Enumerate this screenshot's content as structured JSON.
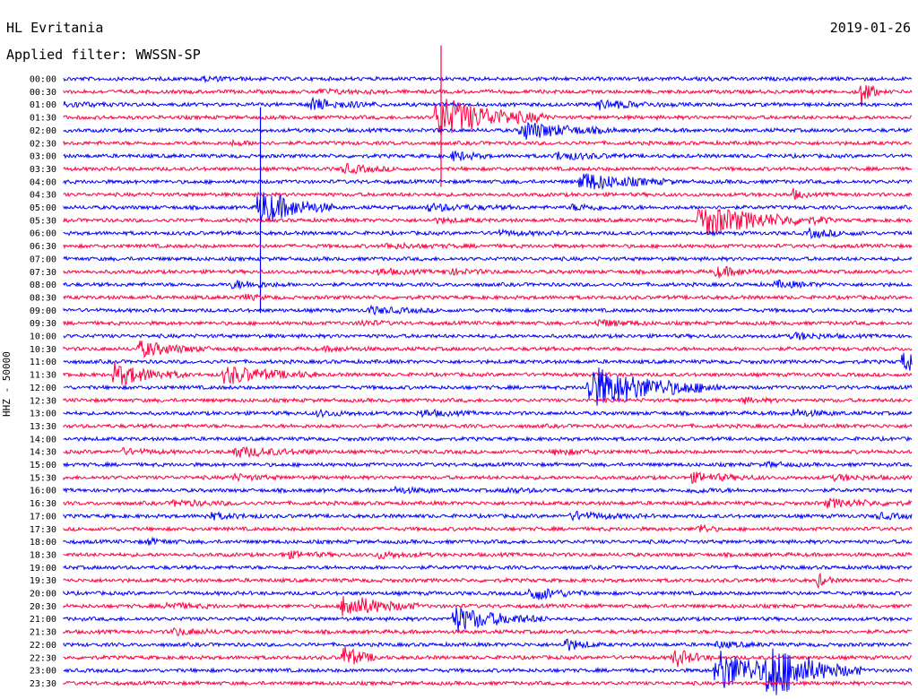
{
  "header": {
    "station": "HL Evritania",
    "date": "2019-01-26",
    "filter": "Applied filter: WWSSN-SP"
  },
  "chart_data": {
    "type": "line",
    "title": "HL Evritania",
    "subtitle": "Applied filter: WWSSN-SP",
    "ylabel": "HHZ - 50000",
    "xlabel": "",
    "colors": [
      "#0000ff",
      "#ff0040"
    ],
    "grid": false,
    "rows": [
      "00:00",
      "00:30",
      "01:00",
      "01:30",
      "02:00",
      "02:30",
      "03:00",
      "03:30",
      "04:00",
      "04:30",
      "05:00",
      "05:30",
      "06:00",
      "06:30",
      "07:00",
      "07:30",
      "08:00",
      "08:30",
      "09:00",
      "09:30",
      "10:00",
      "10:30",
      "11:00",
      "11:30",
      "12:00",
      "12:30",
      "13:00",
      "13:30",
      "14:00",
      "14:30",
      "15:00",
      "15:30",
      "16:00",
      "16:30",
      "17:00",
      "17:30",
      "18:00",
      "18:30",
      "19:00",
      "19:30",
      "20:00",
      "20:30",
      "21:00",
      "21:30",
      "22:00",
      "22:30",
      "23:00",
      "23:30"
    ],
    "events": [
      {
        "row": 0,
        "x": 0.16,
        "amp": 0.3,
        "dur": 0.03
      },
      {
        "row": 0,
        "x": 0.75,
        "amp": 0.2,
        "dur": 0.02
      },
      {
        "row": 1,
        "x": 0.3,
        "amp": 0.3,
        "dur": 0.04
      },
      {
        "row": 1,
        "x": 0.94,
        "amp": 2.5,
        "dur": 0.01
      },
      {
        "row": 2,
        "x": 0.0,
        "amp": 0.4,
        "dur": 0.03
      },
      {
        "row": 2,
        "x": 0.29,
        "amp": 0.9,
        "dur": 0.04
      },
      {
        "row": 2,
        "x": 0.63,
        "amp": 0.7,
        "dur": 0.04
      },
      {
        "row": 3,
        "x": 0.44,
        "amp": 3.5,
        "dur": 0.06
      },
      {
        "row": 4,
        "x": 0.54,
        "amp": 1.5,
        "dur": 0.05
      },
      {
        "row": 5,
        "x": 0.2,
        "amp": 0.3,
        "dur": 0.02
      },
      {
        "row": 6,
        "x": 0.58,
        "amp": 0.6,
        "dur": 0.04
      },
      {
        "row": 6,
        "x": 0.46,
        "amp": 0.8,
        "dur": 0.02
      },
      {
        "row": 7,
        "x": 0.33,
        "amp": 0.7,
        "dur": 0.03
      },
      {
        "row": 8,
        "x": 0.61,
        "amp": 1.5,
        "dur": 0.05
      },
      {
        "row": 9,
        "x": 0.86,
        "amp": 0.8,
        "dur": 0.01
      },
      {
        "row": 10,
        "x": 0.23,
        "amp": 3.0,
        "dur": 0.04
      },
      {
        "row": 10,
        "x": 0.43,
        "amp": 0.5,
        "dur": 0.05
      },
      {
        "row": 10,
        "x": 0.6,
        "amp": 0.4,
        "dur": 0.04
      },
      {
        "row": 11,
        "x": 0.75,
        "amp": 2.5,
        "dur": 0.07
      },
      {
        "row": 11,
        "x": 0.44,
        "amp": 0.3,
        "dur": 0.03
      },
      {
        "row": 12,
        "x": 0.51,
        "amp": 0.3,
        "dur": 0.04
      },
      {
        "row": 12,
        "x": 0.88,
        "amp": 0.6,
        "dur": 0.03
      },
      {
        "row": 13,
        "x": 0.38,
        "amp": 0.3,
        "dur": 0.05
      },
      {
        "row": 15,
        "x": 0.37,
        "amp": 0.4,
        "dur": 0.03
      },
      {
        "row": 15,
        "x": 0.45,
        "amp": 0.4,
        "dur": 0.03
      },
      {
        "row": 15,
        "x": 0.77,
        "amp": 0.8,
        "dur": 0.03
      },
      {
        "row": 16,
        "x": 0.2,
        "amp": 0.6,
        "dur": 0.03
      },
      {
        "row": 16,
        "x": 0.84,
        "amp": 0.5,
        "dur": 0.03
      },
      {
        "row": 17,
        "x": 0.21,
        "amp": 0.4,
        "dur": 0.02
      },
      {
        "row": 18,
        "x": 0.36,
        "amp": 0.5,
        "dur": 0.04
      },
      {
        "row": 19,
        "x": 0.63,
        "amp": 0.5,
        "dur": 0.03
      },
      {
        "row": 19,
        "x": 0.35,
        "amp": 0.4,
        "dur": 0.02
      },
      {
        "row": 20,
        "x": 0.86,
        "amp": 0.5,
        "dur": 0.03
      },
      {
        "row": 21,
        "x": 0.09,
        "amp": 1.2,
        "dur": 0.04
      },
      {
        "row": 21,
        "x": 0.31,
        "amp": 0.3,
        "dur": 0.03
      },
      {
        "row": 22,
        "x": 0.99,
        "amp": 1.5,
        "dur": 0.03
      },
      {
        "row": 23,
        "x": 0.06,
        "amp": 1.8,
        "dur": 0.04
      },
      {
        "row": 23,
        "x": 0.19,
        "amp": 1.5,
        "dur": 0.05
      },
      {
        "row": 24,
        "x": 0.62,
        "amp": 3.5,
        "dur": 0.07
      },
      {
        "row": 25,
        "x": 0.8,
        "amp": 0.4,
        "dur": 0.02
      },
      {
        "row": 26,
        "x": 0.42,
        "amp": 0.5,
        "dur": 0.03
      },
      {
        "row": 26,
        "x": 0.3,
        "amp": 0.4,
        "dur": 0.03
      },
      {
        "row": 26,
        "x": 0.86,
        "amp": 0.5,
        "dur": 0.03
      },
      {
        "row": 29,
        "x": 0.07,
        "amp": 0.4,
        "dur": 0.03
      },
      {
        "row": 29,
        "x": 0.2,
        "amp": 0.8,
        "dur": 0.05
      },
      {
        "row": 29,
        "x": 0.58,
        "amp": 0.4,
        "dur": 0.03
      },
      {
        "row": 30,
        "x": 0.83,
        "amp": 0.3,
        "dur": 0.02
      },
      {
        "row": 31,
        "x": 0.74,
        "amp": 0.7,
        "dur": 0.04
      },
      {
        "row": 31,
        "x": 0.2,
        "amp": 0.4,
        "dur": 0.03
      },
      {
        "row": 31,
        "x": 0.91,
        "amp": 0.4,
        "dur": 0.03
      },
      {
        "row": 32,
        "x": 0.39,
        "amp": 0.4,
        "dur": 0.03
      },
      {
        "row": 32,
        "x": 0.52,
        "amp": 0.3,
        "dur": 0.03
      },
      {
        "row": 32,
        "x": 0.74,
        "amp": 0.3,
        "dur": 0.03
      },
      {
        "row": 33,
        "x": 0.13,
        "amp": 0.4,
        "dur": 0.04
      },
      {
        "row": 33,
        "x": 0.9,
        "amp": 0.6,
        "dur": 0.05
      },
      {
        "row": 34,
        "x": 0.17,
        "amp": 0.5,
        "dur": 0.03
      },
      {
        "row": 34,
        "x": 0.6,
        "amp": 0.6,
        "dur": 0.04
      },
      {
        "row": 34,
        "x": 0.96,
        "amp": 0.4,
        "dur": 0.03
      },
      {
        "row": 35,
        "x": 0.75,
        "amp": 0.8,
        "dur": 0.01
      },
      {
        "row": 36,
        "x": 0.1,
        "amp": 0.4,
        "dur": 0.02
      },
      {
        "row": 37,
        "x": 0.26,
        "amp": 0.5,
        "dur": 0.03
      },
      {
        "row": 37,
        "x": 0.37,
        "amp": 0.5,
        "dur": 0.03
      },
      {
        "row": 39,
        "x": 0.89,
        "amp": 1.0,
        "dur": 0.01
      },
      {
        "row": 40,
        "x": 0.55,
        "amp": 1.2,
        "dur": 0.03
      },
      {
        "row": 41,
        "x": 0.33,
        "amp": 2.0,
        "dur": 0.04
      },
      {
        "row": 41,
        "x": 0.12,
        "amp": 0.5,
        "dur": 0.03
      },
      {
        "row": 42,
        "x": 0.46,
        "amp": 2.0,
        "dur": 0.05
      },
      {
        "row": 43,
        "x": 0.13,
        "amp": 0.5,
        "dur": 0.03
      },
      {
        "row": 44,
        "x": 0.59,
        "amp": 1.0,
        "dur": 0.02
      },
      {
        "row": 44,
        "x": 0.77,
        "amp": 0.4,
        "dur": 0.03
      },
      {
        "row": 45,
        "x": 0.33,
        "amp": 1.8,
        "dur": 0.02
      },
      {
        "row": 45,
        "x": 0.72,
        "amp": 1.5,
        "dur": 0.02
      },
      {
        "row": 46,
        "x": 0.77,
        "amp": 3.5,
        "dur": 0.05
      },
      {
        "row": 46,
        "x": 0.83,
        "amp": 4.0,
        "dur": 0.05
      }
    ],
    "spikes": [
      {
        "row": 3,
        "x": 0.445,
        "up": 5.6,
        "down": 5.4
      },
      {
        "row": 10,
        "x": 0.232,
        "up": 7.8,
        "down": 8.2
      }
    ]
  }
}
